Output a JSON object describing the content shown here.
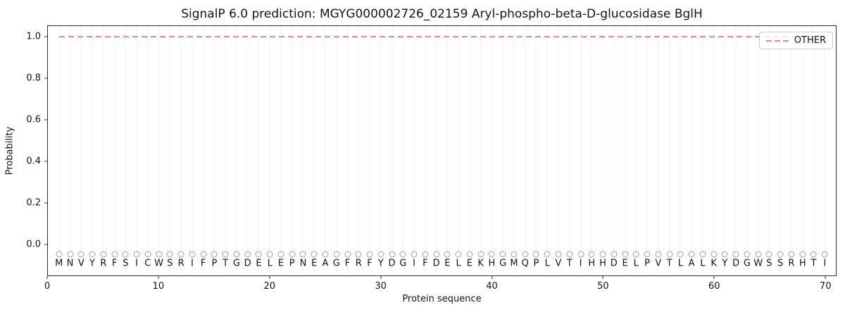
{
  "chart_data": {
    "type": "line",
    "title": "SignalP 6.0 prediction: MGYG000002726_02159 Aryl-phospho-beta-D-glucosidase BglH",
    "xlabel": "Protein sequence",
    "ylabel": "Probability",
    "xlim": [
      0,
      71
    ],
    "ylim": [
      -0.1525,
      1.0525
    ],
    "x_tick_values": [
      0,
      10,
      20,
      30,
      40,
      50,
      60,
      70
    ],
    "x_tick_labels": [
      "0",
      "10",
      "20",
      "30",
      "40",
      "50",
      "60",
      "70"
    ],
    "y_tick_values": [
      0.0,
      0.2,
      0.4,
      0.6,
      0.8,
      1.0
    ],
    "y_tick_labels": [
      "0.0",
      "0.2",
      "0.4",
      "0.6",
      "0.8",
      "1.0"
    ],
    "grid": {
      "vertical_per_residue": true,
      "horizontal": false,
      "color": "#f0f0f0"
    },
    "legend": {
      "position": "upper-right",
      "entries": [
        {
          "label": "OTHER",
          "line_style": "dashed",
          "color": "#ee8787"
        }
      ]
    },
    "sequence": "MNVYRFSICWSRIFPTGDELEPNEAGFRFYDGIFDELEKHGMQPLVTIHHDELPVTLALKYDGWSSRHTI",
    "series": [
      {
        "name": "OTHER",
        "style": "dashed",
        "color": "#ee8787",
        "y_constant": 1.0,
        "x_start": 1,
        "x_end": 70
      }
    ],
    "residue_markers": {
      "symbol": "circle-open",
      "color": "#a2a2a2",
      "y": -0.05
    },
    "residue_labels_y": -0.095,
    "colors": {
      "axis": "#2e2e2e",
      "text": "#141414",
      "grid": "#f0f0f0",
      "other_line": "#ee8787"
    }
  }
}
